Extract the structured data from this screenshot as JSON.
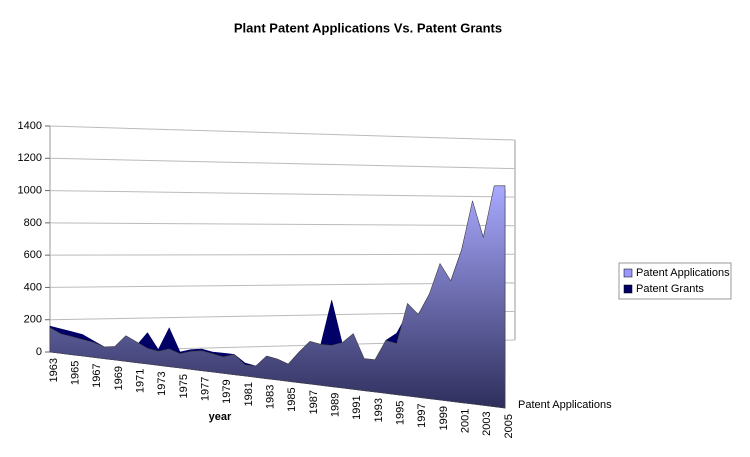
{
  "chart_data": {
    "type": "area",
    "title": "Plant Patent Applications Vs. Patent Grants",
    "x_label": "year",
    "depth_label": "Patent Applications",
    "categories": [
      "1963",
      null,
      "1965",
      null,
      "1967",
      null,
      "1969",
      null,
      "1971",
      null,
      "1973",
      null,
      "1975",
      null,
      "1977",
      null,
      "1979",
      null,
      "1981",
      null,
      "1983",
      null,
      "1985",
      null,
      "1987",
      null,
      "1989",
      null,
      "1991",
      null,
      "1993",
      null,
      "1995",
      null,
      "1997",
      null,
      "1999",
      null,
      "2001",
      null,
      "2003",
      null,
      "2005"
    ],
    "series": [
      {
        "name": "Patent Applications",
        "color": "#9999ff",
        "values": [
          150,
          120,
          110,
          100,
          90,
          70,
          80,
          150,
          120,
          90,
          80,
          100,
          80,
          100,
          110,
          100,
          90,
          110,
          60,
          60,
          120,
          110,
          90,
          160,
          220,
          210,
          210,
          230,
          280,
          160,
          160,
          260,
          250,
          450,
          400,
          500,
          650,
          570,
          720,
          950,
          780,
          1020,
          1020
        ]
      },
      {
        "name": "Patent Grants",
        "color": "#000066",
        "values": [
          160,
          150,
          140,
          130,
          100,
          70,
          60,
          130,
          100,
          180,
          90,
          220,
          90,
          110,
          120,
          110,
          110,
          110,
          70,
          60,
          120,
          110,
          90,
          160,
          220,
          210,
          440,
          220,
          250,
          150,
          150,
          260,
          300,
          400,
          400,
          500,
          600,
          570,
          720,
          940,
          780,
          1000,
          1000
        ]
      }
    ],
    "ylim": [
      0,
      1400
    ],
    "yticks": [
      0,
      200,
      400,
      600,
      800,
      1000,
      1200,
      1400
    ],
    "grid": true,
    "legend": "right"
  }
}
